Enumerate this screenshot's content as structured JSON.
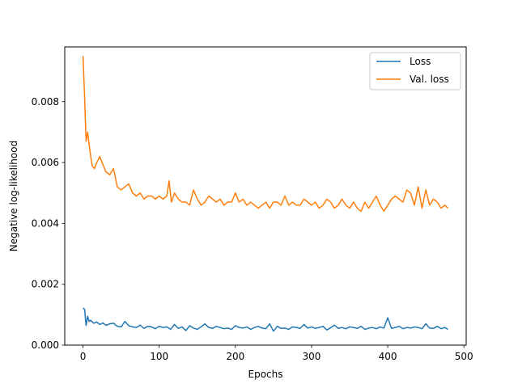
{
  "chart_data": {
    "type": "line",
    "xlabel": "Epochs",
    "ylabel": "Negative log-likelihood",
    "xlim": [
      -24,
      503
    ],
    "ylim": [
      0,
      0.0098
    ],
    "x_ticks": [
      {
        "value": 0,
        "label": "0"
      },
      {
        "value": 100,
        "label": "100"
      },
      {
        "value": 200,
        "label": "200"
      },
      {
        "value": 300,
        "label": "300"
      },
      {
        "value": 400,
        "label": "400"
      },
      {
        "value": 500,
        "label": "500"
      }
    ],
    "y_ticks": [
      {
        "value": 0,
        "label": "0.000"
      },
      {
        "value": 0.002,
        "label": "0.002"
      },
      {
        "value": 0.004,
        "label": "0.004"
      },
      {
        "value": 0.006,
        "label": "0.006"
      },
      {
        "value": 0.008,
        "label": "0.008"
      }
    ],
    "legend_position": "top-right",
    "grid": false,
    "series": [
      {
        "name": "Loss",
        "color": "#1f77b4",
        "x": [
          0,
          2,
          4,
          6,
          8,
          10,
          14,
          18,
          22,
          26,
          30,
          35,
          40,
          45,
          50,
          55,
          60,
          65,
          70,
          75,
          80,
          85,
          90,
          95,
          100,
          105,
          110,
          115,
          120,
          125,
          130,
          135,
          140,
          145,
          150,
          155,
          160,
          165,
          170,
          175,
          180,
          185,
          190,
          195,
          200,
          205,
          210,
          215,
          220,
          225,
          230,
          235,
          240,
          245,
          250,
          255,
          260,
          265,
          270,
          275,
          280,
          285,
          290,
          295,
          300,
          305,
          310,
          315,
          320,
          325,
          330,
          335,
          340,
          345,
          350,
          355,
          360,
          365,
          370,
          375,
          380,
          385,
          390,
          395,
          400,
          405,
          410,
          415,
          420,
          425,
          430,
          435,
          440,
          445,
          450,
          455,
          460,
          465,
          470,
          475,
          479
        ],
        "y": [
          0.00122,
          0.00118,
          0.00065,
          0.00095,
          0.00078,
          0.00082,
          0.00072,
          0.00076,
          0.00068,
          0.00073,
          0.00065,
          0.0007,
          0.00072,
          0.00062,
          0.0006,
          0.00078,
          0.00064,
          0.0006,
          0.00058,
          0.00066,
          0.00055,
          0.00062,
          0.0006,
          0.00054,
          0.00062,
          0.00058,
          0.0006,
          0.00052,
          0.00068,
          0.00055,
          0.0006,
          0.00048,
          0.00064,
          0.00056,
          0.00052,
          0.0006,
          0.0007,
          0.00058,
          0.00055,
          0.00062,
          0.00058,
          0.00054,
          0.00056,
          0.00052,
          0.00064,
          0.00058,
          0.00056,
          0.0006,
          0.00052,
          0.00058,
          0.00062,
          0.00056,
          0.00054,
          0.0007,
          0.00046,
          0.00062,
          0.00055,
          0.00056,
          0.00052,
          0.0006,
          0.00058,
          0.00055,
          0.00068,
          0.00056,
          0.0006,
          0.00055,
          0.00058,
          0.00062,
          0.0005,
          0.00057,
          0.00066,
          0.00055,
          0.00058,
          0.00054,
          0.0006,
          0.00058,
          0.00055,
          0.00062,
          0.00052,
          0.00056,
          0.00058,
          0.00054,
          0.0006,
          0.00056,
          0.0009,
          0.00055,
          0.00058,
          0.00062,
          0.00054,
          0.00058,
          0.00056,
          0.0006,
          0.00058,
          0.00054,
          0.0007,
          0.00056,
          0.00055,
          0.00062,
          0.00054,
          0.00058,
          0.00052
        ]
      },
      {
        "name": "Val. loss",
        "color": "#ff7f0e",
        "x": [
          0,
          2,
          4,
          6,
          8,
          10,
          12,
          15,
          18,
          22,
          25,
          30,
          35,
          40,
          45,
          50,
          55,
          60,
          65,
          70,
          75,
          80,
          85,
          90,
          95,
          100,
          105,
          110,
          113,
          116,
          120,
          125,
          130,
          135,
          140,
          145,
          150,
          155,
          160,
          165,
          170,
          175,
          180,
          185,
          190,
          195,
          200,
          205,
          210,
          215,
          220,
          225,
          230,
          235,
          240,
          245,
          250,
          255,
          260,
          265,
          270,
          275,
          280,
          285,
          290,
          295,
          300,
          305,
          310,
          315,
          320,
          325,
          330,
          335,
          340,
          345,
          350,
          355,
          360,
          365,
          370,
          375,
          380,
          385,
          390,
          395,
          400,
          405,
          410,
          415,
          420,
          425,
          430,
          435,
          440,
          445,
          450,
          455,
          460,
          465,
          470,
          475,
          479
        ],
        "y": [
          0.0095,
          0.0082,
          0.0067,
          0.007,
          0.0066,
          0.0062,
          0.0059,
          0.0058,
          0.006,
          0.0062,
          0.006,
          0.0057,
          0.0056,
          0.0058,
          0.0052,
          0.0051,
          0.0052,
          0.0053,
          0.005,
          0.0049,
          0.005,
          0.0048,
          0.0049,
          0.0049,
          0.0048,
          0.0049,
          0.0048,
          0.0049,
          0.0054,
          0.0047,
          0.005,
          0.0048,
          0.0047,
          0.0047,
          0.0046,
          0.0051,
          0.0048,
          0.0046,
          0.0047,
          0.0049,
          0.0048,
          0.0047,
          0.0048,
          0.0046,
          0.0047,
          0.0047,
          0.005,
          0.0047,
          0.0048,
          0.0046,
          0.0047,
          0.0046,
          0.0045,
          0.0046,
          0.0047,
          0.0045,
          0.0047,
          0.0047,
          0.0046,
          0.0049,
          0.0046,
          0.0047,
          0.0046,
          0.0046,
          0.0048,
          0.0047,
          0.0046,
          0.0047,
          0.0045,
          0.0046,
          0.0048,
          0.0047,
          0.0045,
          0.0046,
          0.0048,
          0.0046,
          0.0045,
          0.0047,
          0.0045,
          0.0044,
          0.0047,
          0.0045,
          0.0047,
          0.0049,
          0.0046,
          0.0044,
          0.0046,
          0.0048,
          0.0049,
          0.0048,
          0.0047,
          0.0051,
          0.005,
          0.0046,
          0.0052,
          0.0045,
          0.0051,
          0.0046,
          0.0048,
          0.0047,
          0.0045,
          0.0046,
          0.0045
        ]
      }
    ]
  }
}
